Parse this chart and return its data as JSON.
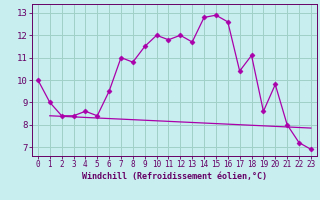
{
  "xlabel": "Windchill (Refroidissement éolien,°C)",
  "line_color": "#aa00aa",
  "bg_color": "#c8eef0",
  "grid_color": "#a0d0c8",
  "axis_color": "#660066",
  "ylim": [
    6.6,
    13.4
  ],
  "xlim": [
    -0.5,
    23.5
  ],
  "yticks": [
    7,
    8,
    9,
    10,
    11,
    12,
    13
  ],
  "xticks": [
    0,
    1,
    2,
    3,
    4,
    5,
    6,
    7,
    8,
    9,
    10,
    11,
    12,
    13,
    14,
    15,
    16,
    17,
    18,
    19,
    20,
    21,
    22,
    23
  ],
  "data_y": [
    10.0,
    9.0,
    8.4,
    8.4,
    8.6,
    8.4,
    9.5,
    11.0,
    10.8,
    11.5,
    12.0,
    11.8,
    12.0,
    11.7,
    12.8,
    12.9,
    12.6,
    10.4,
    11.1,
    8.6,
    9.8,
    8.0,
    7.2,
    6.9
  ],
  "trend_x": [
    1,
    23
  ],
  "trend_y": [
    8.4,
    7.85
  ],
  "marker_size": 2.5,
  "line_width": 0.9,
  "xlabel_fontsize": 6.0,
  "tick_fontsize": 5.5,
  "ytick_fontsize": 6.5
}
